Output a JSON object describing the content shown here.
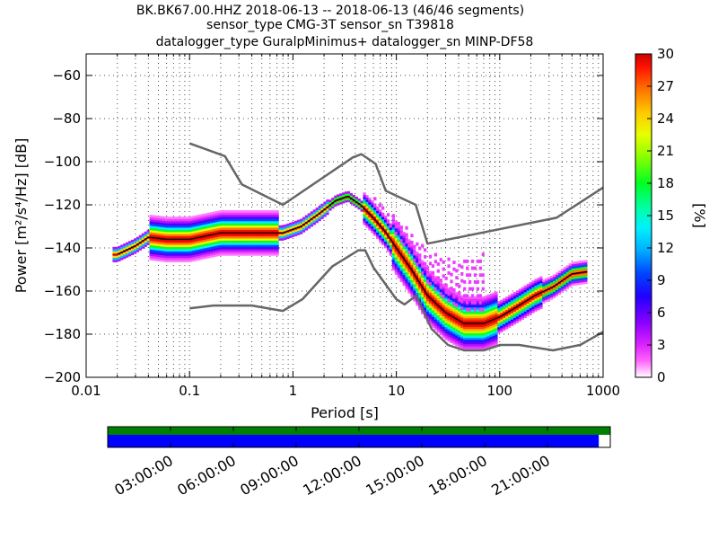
{
  "header": {
    "title_lines": [
      "BK.BK67.00.HHZ   2018-06-13 -- 2018-06-13  (46/46 segments)",
      "sensor_type CMG-3T sensor_sn T39818",
      "datalogger_type GuralpMinimus+ datalogger_sn MINP-DF58"
    ]
  },
  "chart_data": [
    {
      "type": "heatmap",
      "title": "BK.BK67.00.HHZ   2018-06-13 -- 2018-06-13  (46/46 segments)",
      "xlabel": "Period [s]",
      "ylabel": "Power [m²/s⁴/Hz] [dB]",
      "xscale": "log",
      "xlim": [
        0.01,
        1000
      ],
      "ylim": [
        -200,
        -50
      ],
      "x_tick_labels": [
        "0.01",
        "0.1",
        "1",
        "10",
        "100",
        "1000"
      ],
      "x_tick_values": [
        0.01,
        0.1,
        1,
        10,
        100,
        1000
      ],
      "y_tick_labels": [
        "−60",
        "−80",
        "−100",
        "−120",
        "−140",
        "−160",
        "−180",
        "−200"
      ],
      "y_tick_values": [
        -60,
        -80,
        -100,
        -120,
        -140,
        -160,
        -180,
        -200
      ],
      "grid": true,
      "colorbar": {
        "label": "[%]",
        "range": [
          0,
          30
        ],
        "tick_labels": [
          "0",
          "3",
          "6",
          "9",
          "12",
          "15",
          "18",
          "21",
          "24",
          "27",
          "30"
        ],
        "tick_values": [
          0,
          3,
          6,
          9,
          12,
          15,
          18,
          21,
          24,
          27,
          30
        ]
      },
      "series": [
        {
          "role": "noise-model-high",
          "color": "#666666",
          "x": [
            0.1,
            0.22,
            0.32,
            0.8,
            3.8,
            4.6,
            6.3,
            7.9,
            15.4,
            20,
            354,
            1000
          ],
          "y": [
            -91.5,
            -97.4,
            -110.5,
            -120,
            -98,
            -96.5,
            -101,
            -113.5,
            -120,
            -138,
            -126,
            -112
          ]
        },
        {
          "role": "noise-model-low",
          "color": "#666666",
          "x": [
            0.1,
            0.17,
            0.4,
            0.8,
            1.24,
            2.4,
            4.3,
            5,
            6,
            10,
            12,
            15.6,
            21.9,
            31.6,
            45,
            70,
            101,
            154,
            328,
            600,
            1000
          ],
          "y": [
            -168,
            -166.7,
            -166.7,
            -169.2,
            -163.7,
            -148.6,
            -141.1,
            -141.1,
            -149,
            -163.8,
            -166.2,
            -162.1,
            -177.5,
            -185,
            -187.5,
            -187.5,
            -185,
            -185,
            -187.5,
            -185,
            -178.9
          ]
        },
        {
          "role": "mode",
          "color": "#000000",
          "x": [
            0.02,
            0.03,
            0.04,
            0.06,
            0.1,
            0.2,
            0.4,
            0.8,
            1.2,
            1.8,
            2.6,
            3.4,
            4.5,
            6,
            8,
            10,
            14,
            20,
            30,
            45,
            70,
            100,
            150,
            220,
            330,
            500,
            700
          ],
          "y": [
            -143,
            -139,
            -135,
            -136,
            -136,
            -133,
            -133,
            -133,
            -130,
            -124,
            -118,
            -116,
            -120,
            -126,
            -133,
            -140,
            -150,
            -162,
            -170,
            -175,
            -175,
            -172,
            -167,
            -162,
            -158,
            -152,
            -151
          ]
        }
      ]
    },
    {
      "type": "timeline",
      "x_tick_labels": [
        "03:00:00",
        "06:00:00",
        "09:00:00",
        "12:00:00",
        "15:00:00",
        "18:00:00",
        "21:00:00"
      ],
      "x_tick_values_hours": [
        3,
        6,
        9,
        12,
        15,
        18,
        21
      ],
      "xlim_hours": [
        0,
        24
      ],
      "bars": [
        {
          "role": "data-availability",
          "color": "#008000",
          "start_h": 0,
          "end_h": 24
        },
        {
          "role": "psd-segments",
          "color": "#0000ff",
          "start_h": 0,
          "end_h": 23.45
        }
      ]
    }
  ]
}
